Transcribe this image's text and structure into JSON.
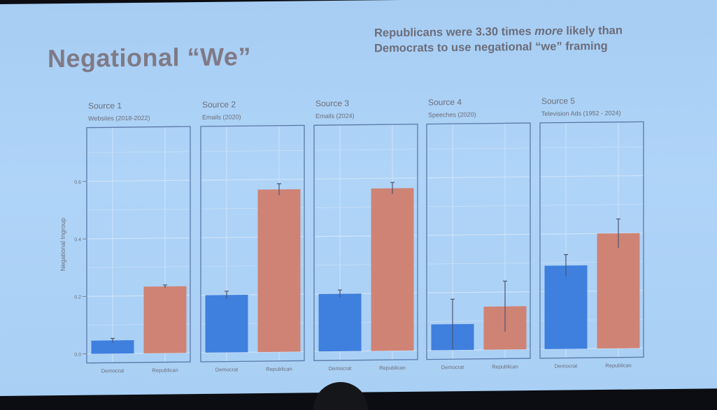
{
  "slide": {
    "title": "Negational “We”",
    "subtitle_parts": [
      "Republicans were 3.30 times ",
      "more",
      " likely than Democrats to use negational “we” framing"
    ]
  },
  "colors": {
    "democrat": "#3f7fde",
    "republican": "#cf8374",
    "panel_border": "#5a79a8",
    "grid": "#cfe3f8",
    "text": "#6b6e7a"
  },
  "chart_data": {
    "type": "bar",
    "ylabel": "Negational Ingroup",
    "ylim": [
      0,
      0.72
    ],
    "yticks": [
      0.0,
      0.2,
      0.4,
      0.6
    ],
    "ytick_labels": [
      "0.0",
      "0.2",
      "0.4",
      "0.6"
    ],
    "categories": [
      "Democrat",
      "Republican"
    ],
    "panels": [
      {
        "title": "Source 1",
        "subtitle": "Websites (2018-2022)",
        "values": [
          0.046,
          0.232
        ],
        "errors": [
          0.007,
          0.005
        ]
      },
      {
        "title": "Source 2",
        "subtitle": "Emails (2020)",
        "values": [
          0.2,
          0.565
        ],
        "errors": [
          0.013,
          0.02
        ]
      },
      {
        "title": "Source 3",
        "subtitle": "Emails (2024)",
        "values": [
          0.2,
          0.565
        ],
        "errors": [
          0.013,
          0.02
        ]
      },
      {
        "title": "Source 4",
        "subtitle": "Speeches (2020)",
        "values": [
          0.09,
          0.15
        ],
        "errors": [
          0.087,
          0.088
        ]
      },
      {
        "title": "Source 5",
        "subtitle": "Television Ads (1952 - 2024)",
        "values": [
          0.29,
          0.4
        ],
        "errors": [
          0.038,
          0.05
        ]
      }
    ]
  }
}
